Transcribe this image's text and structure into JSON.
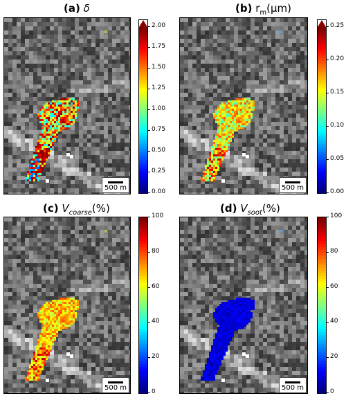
{
  "panels": [
    {
      "label": "(a)",
      "symbol": "δ",
      "sub": "",
      "unit": "",
      "ticks": [
        "0.00",
        "0.25",
        "0.50",
        "0.75",
        "1.00",
        "1.25",
        "1.50",
        "1.75",
        "2.00"
      ],
      "extend_top": true,
      "scalebar": "500 m",
      "overlay": "mixed"
    },
    {
      "label": "(b)",
      "symbol": "r",
      "sub": "m",
      "unit": "(μm)",
      "ticks": [
        "0.00",
        "0.05",
        "0.10",
        "0.15",
        "0.20",
        "0.25"
      ],
      "extend_top": true,
      "scalebar": "500 m",
      "overlay": "green"
    },
    {
      "label": "(c)",
      "symbol": "V",
      "sub": "coarse",
      "unit": "(%)",
      "ticks": [
        "0",
        "20",
        "40",
        "60",
        "80",
        "100"
      ],
      "extend_top": false,
      "scalebar": "500 m",
      "overlay": "yellow"
    },
    {
      "label": "(d)",
      "symbol": "V",
      "sub": "soot",
      "unit": "(%)",
      "ticks": [
        "0",
        "20",
        "40",
        "60",
        "80",
        "100"
      ],
      "extend_top": false,
      "scalebar": "500 m",
      "overlay": "blue"
    }
  ],
  "colors": {
    "jet_bottom": "#0000ff",
    "jet_top": "#8b0000",
    "frame": "#000000"
  }
}
